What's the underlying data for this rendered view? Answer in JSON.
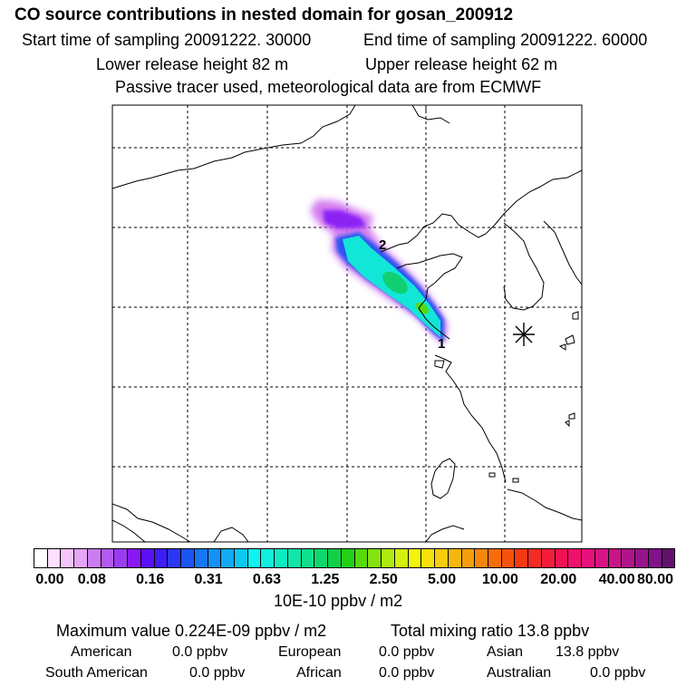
{
  "header": {
    "title": "CO  source contributions in nested domain for gosan_200912",
    "start_time": "Start time of sampling 20091222. 30000",
    "end_time": "End time of sampling 20091222. 60000",
    "lower_release": "Lower release height   82 m",
    "upper_release": "Upper release height   62 m",
    "note": "Passive tracer used, meteorological data are from ECMWF"
  },
  "map": {
    "markers": [
      "2",
      "1"
    ],
    "receptor_symbol": "gosan-receptor-asterisk"
  },
  "colorbar": {
    "ticks": [
      "0.00",
      "0.08",
      "0.16",
      "0.31",
      "0.63",
      "1.25",
      "2.50",
      "5.00",
      "10.00",
      "20.00",
      "40.00",
      "80.00"
    ],
    "colors": [
      "#ffffff",
      "#ffe0ff",
      "#f4c4fa",
      "#e4a6f6",
      "#cc7cf2",
      "#b25af2",
      "#9a3cf2",
      "#8a18f4",
      "#5a10f4",
      "#3c1ef4",
      "#2a38f2",
      "#1c54f2",
      "#1676f4",
      "#1292f6",
      "#12aaf6",
      "#0ec8f4",
      "#10f2f2",
      "#10f0dc",
      "#10ecc2",
      "#10e6a8",
      "#10e08e",
      "#10d66e",
      "#10d046",
      "#22d018",
      "#56da0e",
      "#84e210",
      "#aeea10",
      "#d4f010",
      "#f2f40e",
      "#f6e00c",
      "#f6cc0c",
      "#f6b60c",
      "#f69e0c",
      "#f6860c",
      "#f66c0c",
      "#f6520c",
      "#f63a10",
      "#f42a24",
      "#f41e3c",
      "#f21254",
      "#f0106c",
      "#e8107c",
      "#d81484",
      "#c81488",
      "#b0148a",
      "#98148a",
      "#80128a",
      "#64106e"
    ],
    "unit": "10E-10 ppbv / m2"
  },
  "summary": {
    "max_value": "Maximum value  0.224E-09 ppbv / m2",
    "total_mixing": "Total mixing ratio       13.8 ppbv",
    "regions": [
      {
        "name": "American",
        "value": "0.0 ppbv"
      },
      {
        "name": "European",
        "value": "0.0 ppbv"
      },
      {
        "name": "Asian",
        "value": "13.8 ppbv"
      },
      {
        "name": "South American",
        "value": "0.0 ppbv"
      },
      {
        "name": "African",
        "value": "0.0 ppbv"
      },
      {
        "name": "Australian",
        "value": "0.0 ppbv"
      }
    ]
  }
}
